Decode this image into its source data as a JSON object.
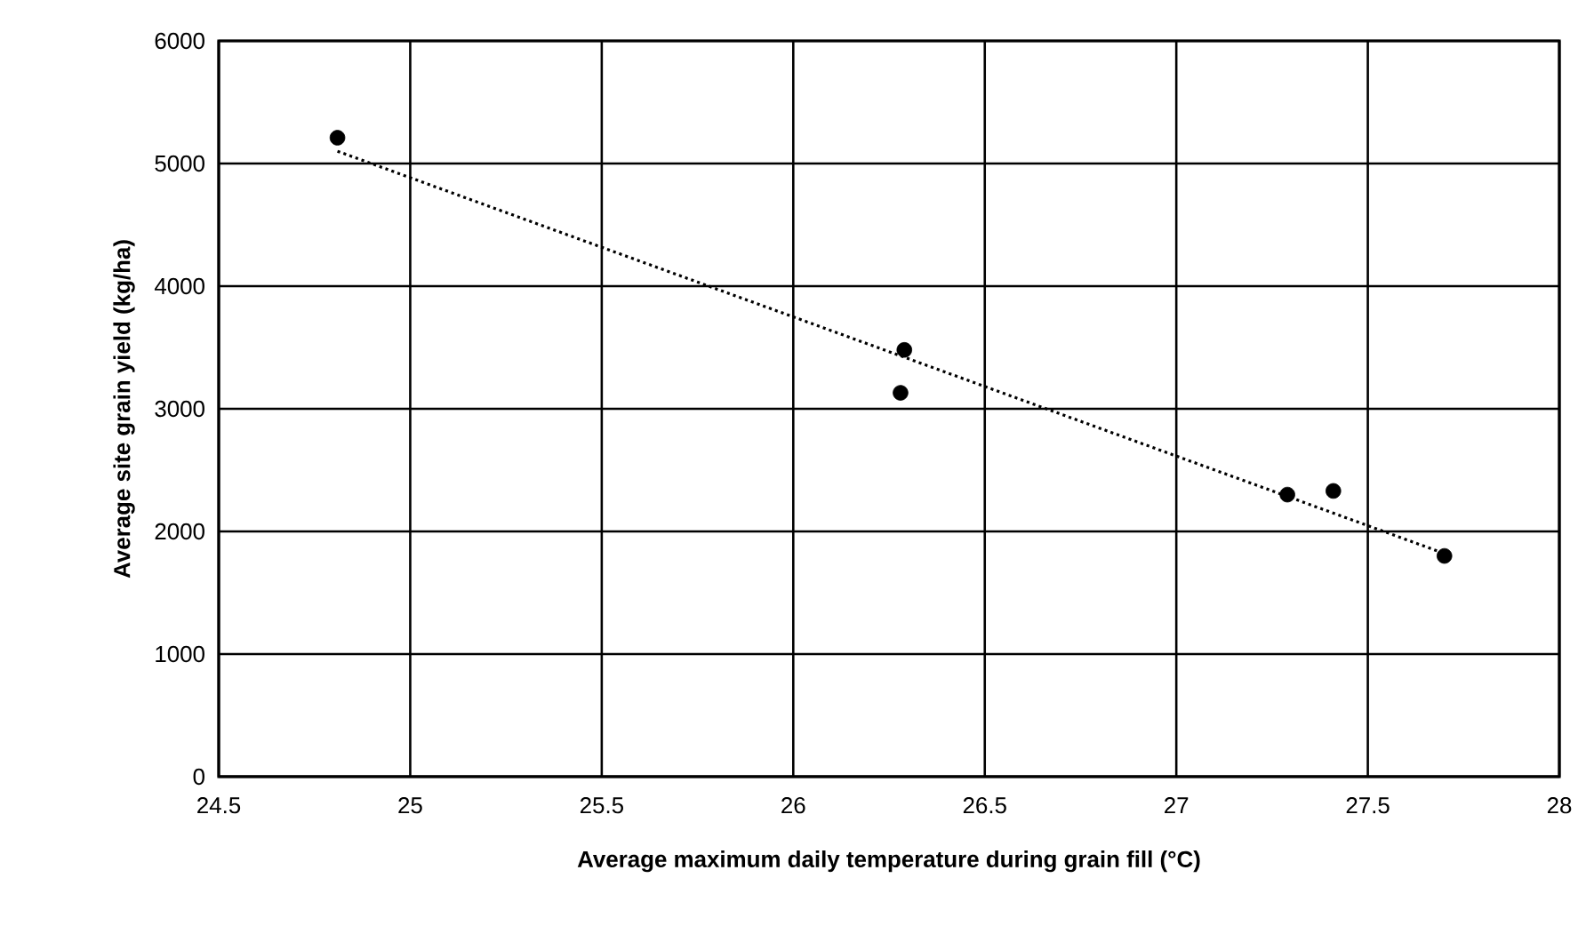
{
  "chart_data": {
    "type": "scatter",
    "xlabel": "Average maximum daily temperature during grain fill (°C)",
    "ylabel": "Average site grain yield (kg/ha)",
    "series": [
      {
        "color": "#000000",
        "marker": "circle",
        "x": [
          24.81,
          26.29,
          26.28,
          27.29,
          27.41,
          27.7
        ],
        "values": [
          5210,
          3480,
          3130,
          2300,
          2330,
          1800
        ]
      },
      {
        "type": "line",
        "color": "#000000",
        "line_style": "dotted",
        "marker": "none",
        "x": [
          24.81,
          27.7
        ],
        "values": [
          5100,
          1820
        ]
      }
    ],
    "xlim": [
      24.5,
      28
    ],
    "xticks": [
      24.5,
      25,
      25.5,
      26,
      26.5,
      27,
      27.5,
      28
    ],
    "ylim": [
      0,
      6000
    ],
    "yticks": [
      0,
      1000,
      2000,
      3000,
      4000,
      5000,
      6000
    ],
    "grid": true
  }
}
